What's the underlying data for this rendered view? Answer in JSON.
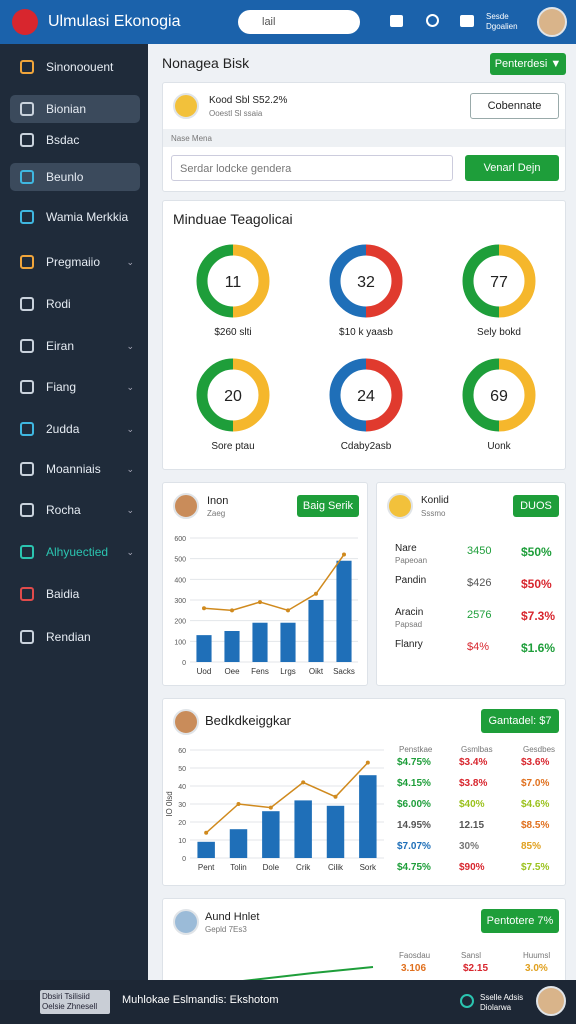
{
  "header": {
    "title": "Ulmulasi Ekonogia",
    "search": "lail",
    "user": "Dgoalien",
    "user_top": "Sesde"
  },
  "sidebar": {
    "items": [
      "Sinonoouent",
      "Bionian",
      "Bsdac",
      "Beunlo",
      "Wamia Merkkia",
      "Pregmaiio",
      "Rodi",
      "Eiran",
      "Fiang",
      "2udda",
      "Moanniais",
      "Rocha",
      "Alhyuectied",
      "Baidia",
      "Rendian"
    ]
  },
  "main": {
    "title": "Nonagea Bisk",
    "button": "Penterdesi ▼"
  },
  "profile_card": {
    "name": "Kood Sbl S52.2%",
    "sub": "Ooestl Sl ssaia",
    "button": "Cobennate",
    "label": "Nase Mena",
    "input": "Serdar lodcke gendera",
    "submit": "Venarl Dejn"
  },
  "gauges": {
    "title": "Minduae Teagolicai",
    "items": [
      {
        "value": 11,
        "label": "$260 slti"
      },
      {
        "value": 32,
        "label": "$10 k yaasb"
      },
      {
        "value": 77,
        "label": "Sely bokd"
      },
      {
        "value": 20,
        "label": "Sore ptau"
      },
      {
        "value": 24,
        "label": "Cdaby2asb"
      },
      {
        "value": 69,
        "label": "Uonk"
      }
    ]
  },
  "charts": [
    {
      "type": "bar",
      "title": "Inon",
      "subtitle": "Zaeg",
      "button": "Baig Serik",
      "categories": [
        "Uod",
        "Oee",
        "Fens",
        "Lrgs",
        "Oikt",
        "Sacks"
      ],
      "series": [
        {
          "name": "Bars",
          "color": "#1f6fb8",
          "values": [
            130,
            150,
            190,
            190,
            300,
            490
          ]
        },
        {
          "name": "Line",
          "color": "#d08a1e",
          "values": [
            260,
            250,
            290,
            250,
            330,
            520
          ]
        }
      ],
      "ylim": [
        0,
        600
      ],
      "yticks": [
        0,
        100,
        200,
        300,
        400,
        500,
        600
      ]
    },
    {
      "type": "bar",
      "title": "Bedkdkeiggkar",
      "button": "Gantadel: $7",
      "ylabel": "IO 0lsd",
      "categories": [
        "Pent",
        "Tolin",
        "Dole",
        "Crik",
        "Cilik",
        "Sork"
      ],
      "series": [
        {
          "name": "Bars",
          "color": "#1f6fb8",
          "values": [
            9,
            16,
            26,
            32,
            29,
            46
          ]
        },
        {
          "name": "Line",
          "color": "#d08a1e",
          "values": [
            14,
            30,
            28,
            42,
            34,
            53
          ]
        }
      ],
      "ylim": [
        0,
        60
      ],
      "yticks": [
        0,
        10,
        20,
        30,
        40,
        50,
        60
      ]
    }
  ],
  "konlid": {
    "title": "Konlid",
    "sub": "Sssmo",
    "button": "DUOS",
    "rows": [
      [
        "Nare",
        "Papeoan",
        "3450",
        "$50%"
      ],
      [
        "Pandin",
        "",
        "$426",
        "$50%"
      ],
      [
        "Aracin",
        "Papsad",
        "2576",
        "$7.3%"
      ],
      [
        "Flanry",
        "",
        "$4%",
        "$1.6%"
      ]
    ]
  },
  "table": {
    "headers": [
      "Penstkae",
      "Gsmlbas",
      "Gesdbes"
    ],
    "rows": [
      [
        "$4.75%",
        "$3.4%",
        "$3.6%"
      ],
      [
        "$4.15%",
        "$3.8%",
        "$7.0%"
      ],
      [
        "$6.00%",
        "$40%",
        "$4.6%"
      ],
      [
        "14.95%",
        "12.15",
        "$8.5%"
      ],
      [
        "$7.07%",
        "30%",
        "85%"
      ],
      [
        "$4.75%",
        "$90%",
        "$7.5%"
      ]
    ]
  },
  "bottom_card": {
    "title": "Aund Hnlet",
    "sub": "Gepld 7Es3",
    "button": "Pentotere 7%",
    "columns": [
      [
        "Faosdau",
        "3.106"
      ],
      [
        "Sansl",
        "$2.15"
      ],
      [
        "Huumsl",
        "3.0%"
      ]
    ]
  },
  "footer": {
    "left_1": "Dbsiri Tsilisiid",
    "left_2": "Oelsie Zhnesell",
    "center": "Muhlokae Eslmandis: Ekshotom",
    "right_1": "Sselle Adsis",
    "right_2": "Diolarwa"
  }
}
